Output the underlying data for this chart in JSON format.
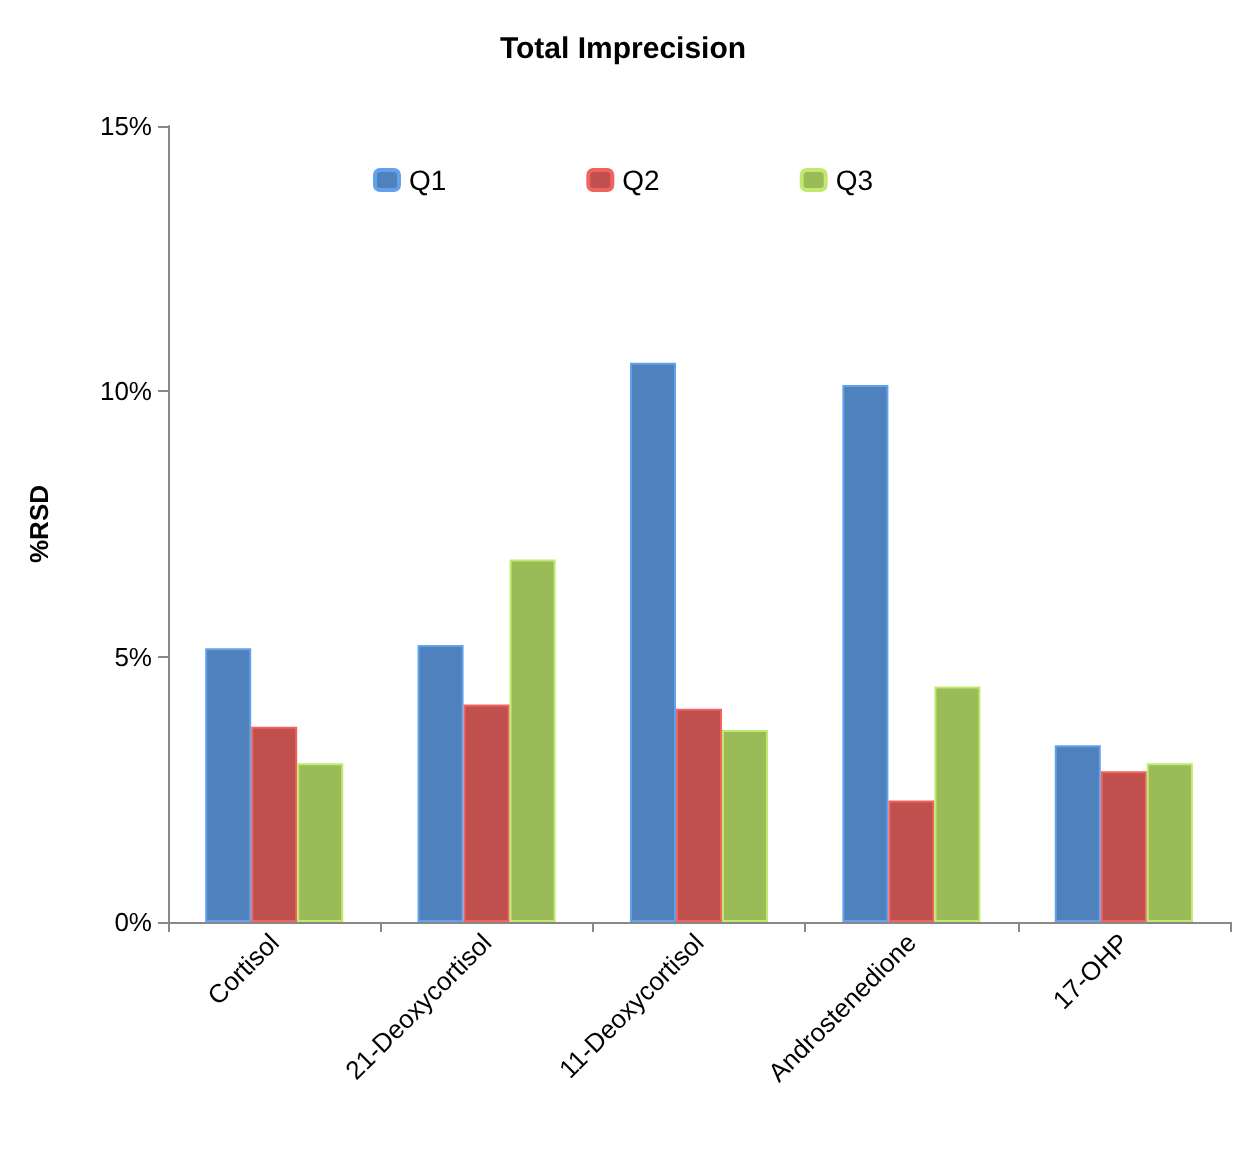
{
  "chart_data": {
    "type": "bar",
    "title": "Total Imprecision",
    "ylabel": "%RSD",
    "categories": [
      "Cortisol",
      "21-Deoxycortisol",
      "11-Deoxycortisol",
      "Androstenedione",
      "17-OHP"
    ],
    "series": [
      {
        "name": "Q1",
        "color": "#4f81bd",
        "values": [
          5.16,
          5.22,
          10.54,
          10.12,
          3.33
        ]
      },
      {
        "name": "Q2",
        "color": "#c0504d",
        "values": [
          3.68,
          4.1,
          4.02,
          2.29,
          2.84
        ]
      },
      {
        "name": "Q3",
        "color": "#9bbb59",
        "values": [
          2.99,
          6.83,
          3.62,
          4.44,
          2.99
        ]
      }
    ],
    "ylim": [
      0,
      15
    ],
    "yticks": [
      {
        "value": 0,
        "label": "0%"
      },
      {
        "value": 5,
        "label": "5%"
      },
      {
        "value": 10,
        "label": "10%"
      },
      {
        "value": 15,
        "label": "15%"
      }
    ],
    "grid": false,
    "legend": "top"
  }
}
